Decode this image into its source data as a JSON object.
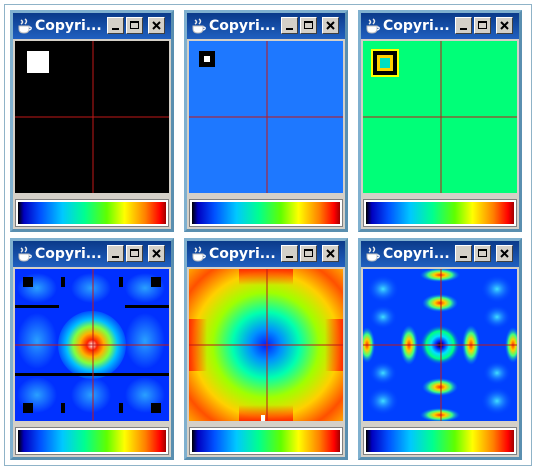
{
  "windows": [
    {
      "id": "w1",
      "title": "Copyri...",
      "plot": "point-source",
      "plot_bg": "#000000"
    },
    {
      "id": "w2",
      "title": "Copyri...",
      "plot": "small-marker",
      "plot_bg": "#1e78ff"
    },
    {
      "id": "w3",
      "title": "Copyri...",
      "plot": "ring-marker",
      "plot_bg": "#00ff78"
    },
    {
      "id": "w4",
      "title": "Copyri...",
      "plot": "grid-spectrum",
      "plot_bg": "#0030ff"
    },
    {
      "id": "w5",
      "title": "Copyri...",
      "plot": "radial-spectrum",
      "plot_bg": "#ffd000"
    },
    {
      "id": "w6",
      "title": "Copyri...",
      "plot": "band-spectrum",
      "plot_bg": "#0040ff"
    }
  ],
  "icons": {
    "app": "java-cup-icon",
    "minimize": "minimize-icon",
    "maximize": "maximize-icon",
    "close": "close-icon"
  },
  "colors": {
    "crosshair": "#c01818",
    "titlebar": "#0a3a8a"
  }
}
